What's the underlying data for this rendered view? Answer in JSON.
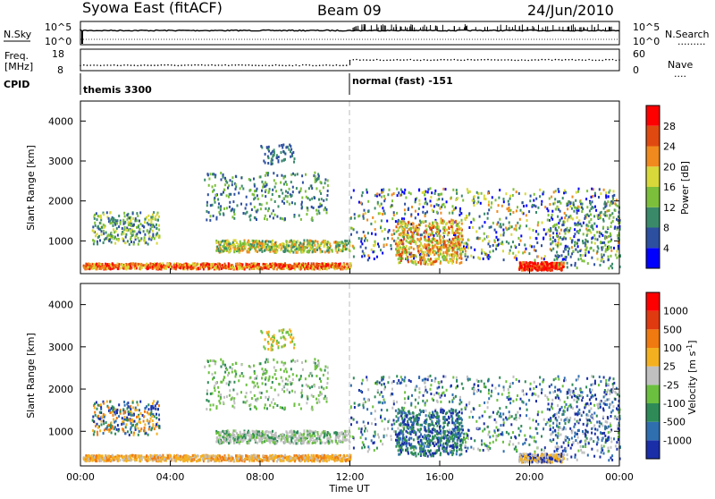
{
  "header": {
    "title": "Syowa East (fitACF)",
    "beam": "Beam 09",
    "date": "24/Jun/2010"
  },
  "colors": {
    "power_scale": [
      "#0000ff",
      "#2d4fa0",
      "#3a8a6a",
      "#7cbf3a",
      "#d8d83a",
      "#f08a1e",
      "#e04a10",
      "#ff0000"
    ],
    "velocity_scale": [
      "#1a2ea8",
      "#2f6fb0",
      "#2e8b57",
      "#6cc040",
      "#c0c0c0",
      "#f5b020",
      "#f07a10",
      "#e03a10",
      "#ff0000"
    ],
    "ground_scatter": "#b0b0b0"
  },
  "chart_data": [
    {
      "type": "line",
      "name": "nsky-nsearch",
      "left_label": "N.Sky",
      "right_label": "N.Search",
      "yticks_left": [
        "10^5",
        "10^0"
      ],
      "yticks_right": [
        "10^5",
        "10^0"
      ]
    },
    {
      "type": "scatter",
      "name": "freq-nave",
      "left_label_1": "Freq.",
      "left_label_2": "[MHz]",
      "yticks_left": [
        "18",
        "8"
      ],
      "right_label": "Nave",
      "yticks_right": [
        "60",
        "0"
      ],
      "segments": [
        {
          "x_range": [
            "00:00",
            "12:00"
          ],
          "freq": 10.5
        },
        {
          "x_range": [
            "12:00",
            "24:00"
          ],
          "freq": 13.0
        }
      ]
    },
    {
      "type": "table",
      "name": "cpid",
      "label": "CPID",
      "entries": [
        {
          "time": "00:00",
          "text": "themis 3300"
        },
        {
          "time": "12:00",
          "text": "normal (fast) -151"
        }
      ]
    },
    {
      "type": "heatmap",
      "name": "power",
      "ylabel": "Slant Range [km]",
      "ylim": [
        180,
        4500
      ],
      "yticks": [
        "4000",
        "3000",
        "2000",
        "1000"
      ],
      "colorbar_label": "Power [dB]",
      "colorbar_ticks": [
        "28",
        "24",
        "20",
        "16",
        "12",
        "8",
        "4"
      ],
      "clim": [
        0,
        32
      ]
    },
    {
      "type": "heatmap",
      "name": "velocity",
      "ylabel": "Slant Range [km]",
      "ylim": [
        180,
        4500
      ],
      "yticks": [
        "4000",
        "3000",
        "2000",
        "1000"
      ],
      "xlabel": "Time UT",
      "xticks": [
        "00:00",
        "04:00",
        "08:00",
        "12:00",
        "16:00",
        "20:00",
        "00:00"
      ],
      "xlim": [
        0,
        24
      ],
      "colorbar_label": "Velocity [m s",
      "colorbar_unit_exp": "-1",
      "colorbar_label_end": "]",
      "colorbar_ticks": [
        "1000",
        "500",
        "100",
        "25",
        "-25",
        "-100",
        "-500",
        "-1000"
      ]
    }
  ],
  "annotations": {
    "n_search_dots": ".........",
    "nave_dots": "...."
  }
}
